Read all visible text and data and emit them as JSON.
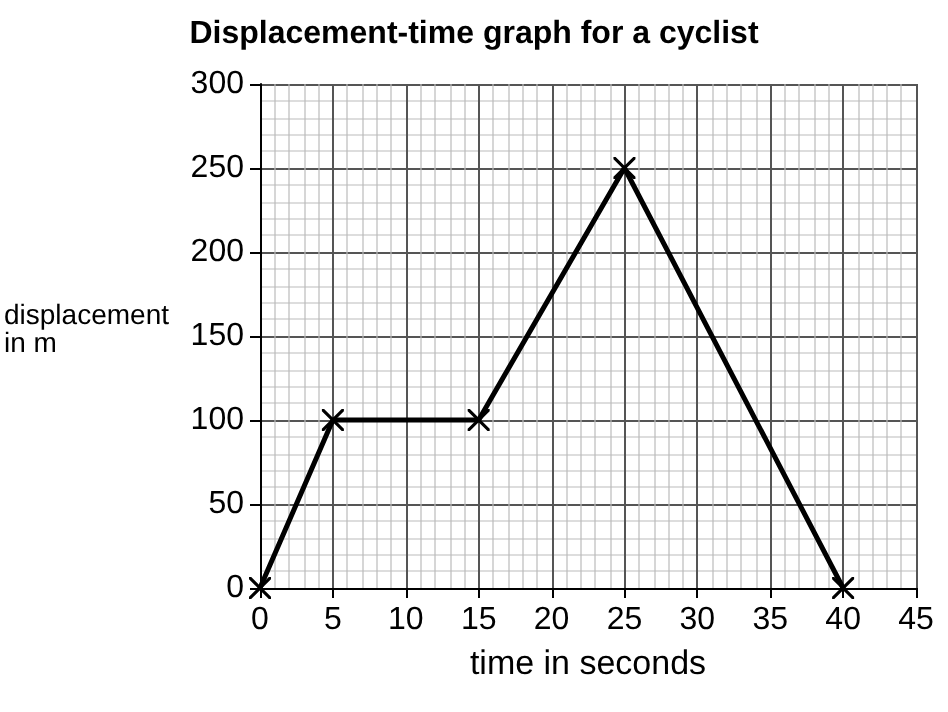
{
  "chart_data": {
    "type": "line",
    "title": "Displacement-time graph for a cyclist",
    "xlabel": "time in seconds",
    "ylabel": "displacement\nin m",
    "x": [
      0,
      5,
      15,
      25,
      40
    ],
    "series": [
      {
        "color": "#000000",
        "values": [
          0,
          100,
          100,
          250,
          0
        ]
      }
    ],
    "xlim": [
      0,
      45
    ],
    "xticks": [
      0,
      5,
      10,
      15,
      20,
      25,
      30,
      35,
      40,
      45
    ],
    "ylim": [
      0,
      300
    ],
    "yticks": [
      0,
      50,
      100,
      150,
      200,
      250,
      300
    ],
    "grid": true,
    "marker": "cross",
    "line_style": "solid"
  }
}
